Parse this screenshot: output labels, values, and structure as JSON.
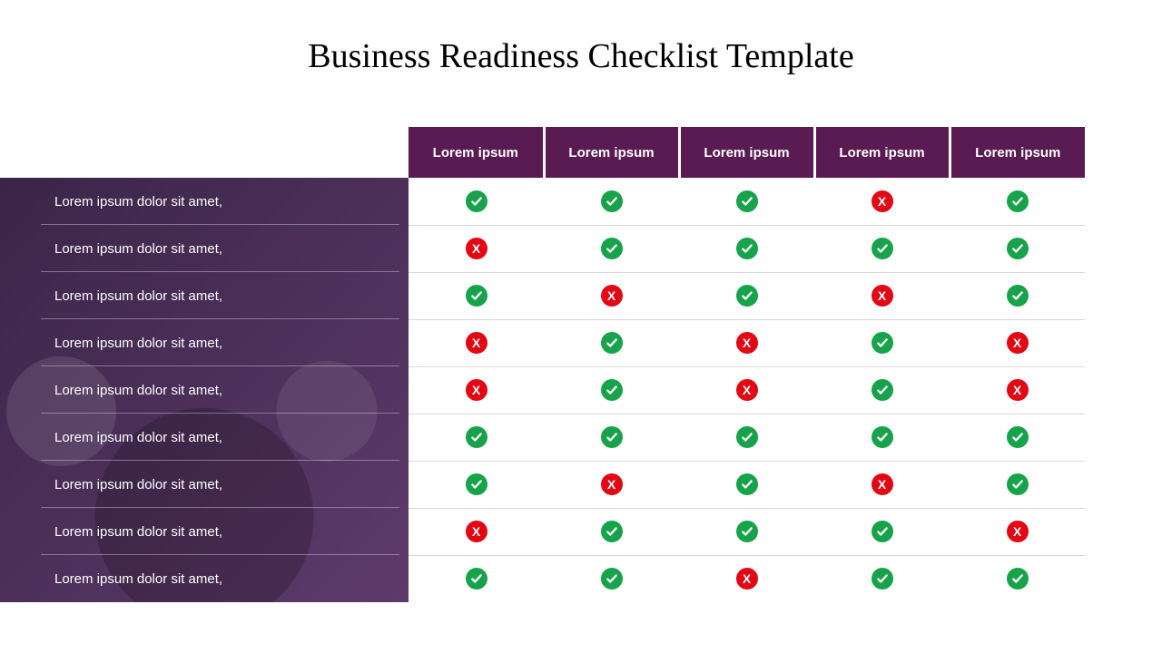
{
  "title": "Business Readiness Checklist Template",
  "colors": {
    "header_bg": "#5a1a52",
    "header_fg": "#ffffff",
    "rowhead_fg": "#ffffff",
    "check": "#16a34a",
    "cross": "#e30613",
    "row_border": "#d9d9d9"
  },
  "columns": [
    "Lorem ipsum",
    "Lorem ipsum",
    "Lorem ipsum",
    "Lorem ipsum",
    "Lorem ipsum"
  ],
  "rows": [
    {
      "label": "Lorem ipsum dolor sit amet,",
      "values": [
        "check",
        "check",
        "check",
        "cross",
        "check"
      ]
    },
    {
      "label": "Lorem ipsum dolor sit amet,",
      "values": [
        "cross",
        "check",
        "check",
        "check",
        "check"
      ]
    },
    {
      "label": "Lorem ipsum dolor sit amet,",
      "values": [
        "check",
        "cross",
        "check",
        "cross",
        "check"
      ]
    },
    {
      "label": "Lorem ipsum dolor sit amet,",
      "values": [
        "cross",
        "check",
        "cross",
        "check",
        "cross"
      ]
    },
    {
      "label": "Lorem ipsum dolor sit amet,",
      "values": [
        "cross",
        "check",
        "cross",
        "check",
        "cross"
      ]
    },
    {
      "label": "Lorem ipsum dolor sit amet,",
      "values": [
        "check",
        "check",
        "check",
        "check",
        "check"
      ]
    },
    {
      "label": "Lorem ipsum dolor sit amet,",
      "values": [
        "check",
        "cross",
        "check",
        "cross",
        "check"
      ]
    },
    {
      "label": "Lorem ipsum dolor sit amet,",
      "values": [
        "cross",
        "check",
        "check",
        "check",
        "cross"
      ]
    },
    {
      "label": "Lorem ipsum dolor sit amet,",
      "values": [
        "check",
        "check",
        "cross",
        "check",
        "check"
      ]
    }
  ]
}
